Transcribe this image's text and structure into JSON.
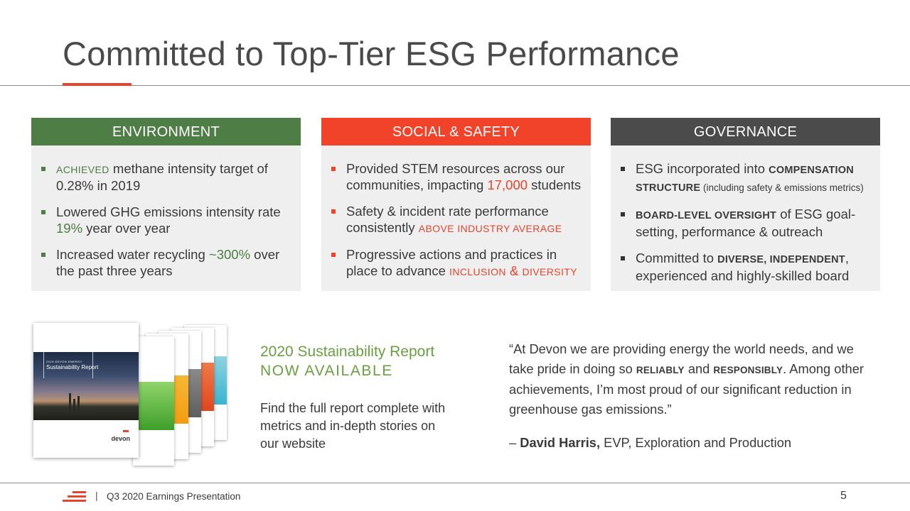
{
  "title": "Committed to Top-Tier ESG Performance",
  "colors": {
    "accent": "#e8442d",
    "environment": "#4e7d46",
    "social": "#f0432a",
    "governance": "#4b4b4b",
    "report_green": "#6aa041"
  },
  "environment": {
    "heading": "ENVIRONMENT",
    "b1": {
      "sc": "ACHIEVED",
      "text": " methane intensity target of 0.28% in 2019"
    },
    "b2": {
      "pre": "Lowered GHG emissions intensity rate ",
      "hl": "19%",
      "post": " year over year"
    },
    "b3": {
      "pre": "Increased water recycling ",
      "hl": "~300%",
      "post": " over the past three years"
    }
  },
  "social": {
    "heading": "SOCIAL & SAFETY",
    "b1": {
      "pre": "Provided STEM resources across our communities, impacting ",
      "hl": "17,000",
      "post": " students"
    },
    "b2": {
      "pre": "Safety & incident rate performance consistently ",
      "hl": "ABOVE INDUSTRY AVERAGE"
    },
    "b3": {
      "pre": "Progressive actions and practices in place to advance ",
      "hl1": "INCLUSION",
      "amp": " & ",
      "hl2": "DIVERSITY"
    }
  },
  "governance": {
    "heading": "GOVERNANCE",
    "b1": {
      "pre": "ESG incorporated into ",
      "sc": "COMPENSATION STRUCTURE",
      "note": " (including safety & emissions metrics)"
    },
    "b2": {
      "sc": "BOARD-LEVEL OVERSIGHT",
      "post": " of ESG goal-setting, performance & outreach"
    },
    "b3": {
      "pre": "Committed to ",
      "sc": "DIVERSE, INDEPENDENT",
      "post": ", experienced and highly-skilled board"
    }
  },
  "report": {
    "cover_small": "2019 DEVON ENERGY",
    "cover_title": "Sustainability Report",
    "cover_logo": "devon",
    "title": "2020 Sustainability Report",
    "available": "NOW AVAILABLE",
    "description": "Find the full report complete with metrics and in-depth stories on our website"
  },
  "quote": {
    "p1": "“At Devon we are providing energy the world needs, and we take pride in doing so ",
    "sc1": "RELIABLY",
    "p2": " and ",
    "sc2": "RESPONSIBLY",
    "p3": ". Among other achievements, I’m most proud of our significant reduction in greenhouse gas emissions.”",
    "dash": "– ",
    "name": "David Harris,",
    "role": " EVP, Exploration and Production"
  },
  "footer": {
    "separator": "|",
    "text": "Q3 2020 Earnings Presentation",
    "page": "5"
  }
}
